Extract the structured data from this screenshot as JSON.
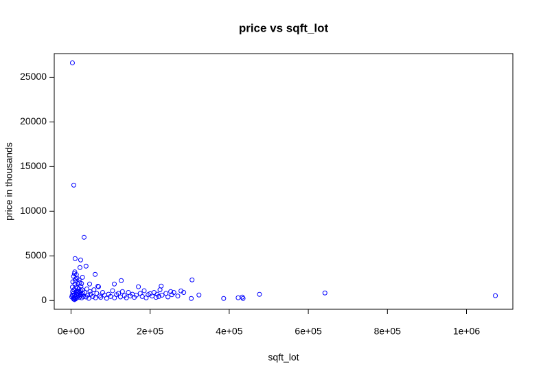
{
  "chart_data": {
    "type": "scatter",
    "title": "price vs sqft_lot",
    "x_label": "sqft_lot",
    "y_label": "price in thousands",
    "color": "#0000ff",
    "grid": false,
    "xlim": [
      -42428,
      1117166
    ],
    "ylim": [
      -982,
      27650
    ],
    "xticks": [
      {
        "value": 0,
        "label": "0e+00"
      },
      {
        "value": 200000,
        "label": "2e+05"
      },
      {
        "value": 400000,
        "label": "4e+05"
      },
      {
        "value": 600000,
        "label": "6e+05"
      },
      {
        "value": 800000,
        "label": "8e+05"
      },
      {
        "value": 1000000,
        "label": "1e+06"
      }
    ],
    "yticks": [
      0,
      5000,
      10000,
      15000,
      20000,
      25000
    ],
    "x": [
      5000,
      6000,
      7500,
      8000,
      9000,
      10000,
      10500,
      11000,
      12000,
      12500,
      13000,
      14000,
      15000,
      15500,
      16000,
      17000,
      18000,
      19000,
      20000,
      21000,
      22000,
      23000,
      24000,
      25000,
      26000,
      27000,
      28000,
      29000,
      30000,
      31000,
      6500,
      8500,
      9500,
      11500,
      13500,
      7000,
      9000,
      12000,
      16500,
      18500,
      20500,
      22500,
      24500,
      26500,
      3000,
      4000,
      4500,
      2000,
      3500,
      5500,
      35000,
      38000,
      40000,
      42000,
      45000,
      48000,
      50000,
      55000,
      58000,
      62000,
      65000,
      68000,
      72000,
      75000,
      80000,
      85000,
      90000,
      95000,
      100000,
      105000,
      110000,
      115000,
      120000,
      125000,
      130000,
      135000,
      140000,
      145000,
      150000,
      155000,
      160000,
      165000,
      175000,
      180000,
      185000,
      190000,
      195000,
      205000,
      210000,
      215000,
      218000,
      222000,
      225000,
      230000,
      240000,
      245000,
      255000,
      260000,
      270000,
      285000,
      3500,
      7000,
      33000,
      10400,
      24300,
      38000,
      22600,
      61000,
      127000,
      306000,
      642000,
      476500,
      1073000,
      323500,
      304000,
      386000,
      422600,
      433000,
      435000,
      228000,
      170400,
      109500,
      69500,
      47000,
      278000,
      252000,
      200000
    ],
    "values": [
      500,
      800,
      1200,
      300,
      650,
      1800,
      2200,
      450,
      950,
      1500,
      250,
      700,
      2500,
      1100,
      400,
      850,
      1900,
      600,
      1300,
      350,
      2000,
      900,
      500,
      1600,
      700,
      300,
      1200,
      2600,
      800,
      450,
      2700,
      3000,
      3200,
      2400,
      2900,
      150,
      100,
      200,
      1400,
      1000,
      2300,
      650,
      1100,
      1900,
      600,
      1000,
      2100,
      400,
      1500,
      250,
      900,
      400,
      1300,
      600,
      250,
      1000,
      700,
      450,
      1200,
      300,
      800,
      1600,
      500,
      350,
      900,
      600,
      250,
      700,
      450,
      1100,
      300,
      650,
      800,
      400,
      1000,
      550,
      300,
      900,
      500,
      700,
      350,
      600,
      800,
      450,
      1100,
      300,
      650,
      500,
      900,
      350,
      700,
      450,
      1200,
      600,
      800,
      400,
      650,
      900,
      500,
      900,
      26615,
      12923,
      7077,
      4692,
      4538,
      3846,
      3692,
      2923,
      2230,
      2307,
      846,
      692,
      538,
      615,
      230,
      230,
      308,
      385,
      230,
      1615,
      1538,
      1846,
      1538,
      1846,
      1077,
      1000,
      770
    ]
  }
}
